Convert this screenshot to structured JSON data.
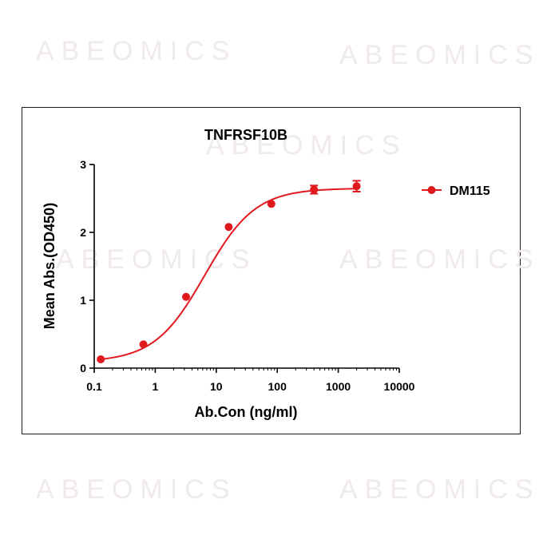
{
  "watermarks": [
    "ABEOMICS",
    "ABEOMICS",
    "ABEOMICS",
    "ABEOMICS"
  ],
  "colors": {
    "series": "#e0191f",
    "axis": "#000000",
    "frame": "#1a1a1a"
  },
  "chart_data": {
    "type": "scatter",
    "title": "TNFRSF10B",
    "xlabel": "Ab.Con (ng/ml)",
    "ylabel": "Mean Abs.(OD450)",
    "xscale": "log",
    "xlim": [
      0.1,
      10000
    ],
    "ylim": [
      0,
      3
    ],
    "xticks": [
      0.1,
      1,
      10,
      100,
      1000,
      10000
    ],
    "xtick_labels": [
      "0.1",
      "1",
      "10",
      "100",
      "1000",
      "10000"
    ],
    "yticks": [
      0,
      1,
      2,
      3
    ],
    "ytick_labels": [
      "0",
      "1",
      "2",
      "3"
    ],
    "legend_position": "right",
    "grid": false,
    "series": [
      {
        "name": "DM115",
        "color": "#e0191f",
        "marker": "circle",
        "x": [
          0.128,
          0.64,
          3.2,
          16,
          80,
          400,
          2000
        ],
        "y": [
          0.13,
          0.35,
          1.05,
          2.08,
          2.42,
          2.63,
          2.68
        ],
        "yerr": [
          0,
          0,
          0,
          0,
          0,
          0.06,
          0.08
        ],
        "fit": {
          "model": "4PL",
          "bottom": 0.09,
          "top": 2.65,
          "ec50": 6.5,
          "hill": 1.05
        }
      }
    ]
  }
}
